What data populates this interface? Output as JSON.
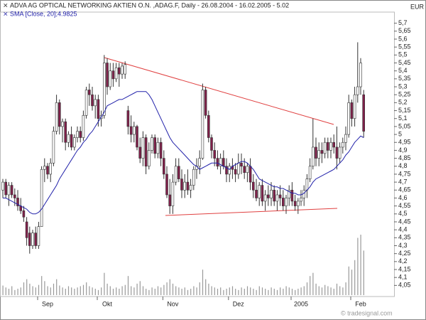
{
  "chart_data": {
    "type": "candlestick",
    "title": "ADVA AG OPTICAL NETWORKING AKTIEN O.N. ,ADAG.F, Daily - 26.08.2004 - 16.02.2005 - 5.02",
    "subtitle": "SMA [Close, 20];4.9825",
    "currency": "EUR",
    "source": "© tradesignal.com",
    "up_color": "#ffffff",
    "down_color": "#80204a",
    "sma_color": "#2222aa",
    "volume_color": "#999999",
    "ylim": [
      3.98,
      5.77
    ],
    "yticks": [
      {
        "value": 4.05,
        "label": "4,05"
      },
      {
        "value": 4.1,
        "label": "4,1"
      },
      {
        "value": 4.15,
        "label": "4,15"
      },
      {
        "value": 4.2,
        "label": "4,2"
      },
      {
        "value": 4.25,
        "label": "4,25"
      },
      {
        "value": 4.3,
        "label": "4,3"
      },
      {
        "value": 4.35,
        "label": "4,35"
      },
      {
        "value": 4.4,
        "label": "4,4"
      },
      {
        "value": 4.45,
        "label": "4,45"
      },
      {
        "value": 4.5,
        "label": "4,5"
      },
      {
        "value": 4.55,
        "label": "4,55"
      },
      {
        "value": 4.6,
        "label": "4,6"
      },
      {
        "value": 4.65,
        "label": "4,65"
      },
      {
        "value": 4.7,
        "label": "4,7"
      },
      {
        "value": 4.75,
        "label": "4,75"
      },
      {
        "value": 4.8,
        "label": "4,8"
      },
      {
        "value": 4.85,
        "label": "4,85"
      },
      {
        "value": 4.9,
        "label": "4,9"
      },
      {
        "value": 4.95,
        "label": "4,95"
      },
      5,
      {
        "value": 5.05,
        "label": "5,05"
      },
      {
        "value": 5.1,
        "label": "5,1"
      },
      {
        "value": 5.15,
        "label": "5,15"
      },
      {
        "value": 5.2,
        "label": "5,2"
      },
      {
        "value": 5.25,
        "label": "5,25"
      },
      {
        "value": 5.3,
        "label": "5,3"
      },
      {
        "value": 5.35,
        "label": "5,35"
      },
      {
        "value": 5.4,
        "label": "5,4"
      },
      {
        "value": 5.45,
        "label": "5,45"
      },
      {
        "value": 5.5,
        "label": "5,5"
      },
      {
        "value": 5.55,
        "label": "5,55"
      },
      {
        "value": 5.6,
        "label": "5,6"
      },
      {
        "value": 5.65,
        "label": "5,65"
      },
      {
        "value": 5.7,
        "label": "5,7"
      }
    ],
    "xticks": [
      {
        "value": 15,
        "label": "Sep"
      },
      {
        "value": 35,
        "label": "Okt"
      },
      {
        "value": 57,
        "label": "Nov"
      },
      {
        "value": 79,
        "label": "Dez"
      },
      {
        "value": 100,
        "label": "2005"
      },
      {
        "value": 120,
        "label": "Feb"
      }
    ],
    "open": [
      4.65,
      4.7,
      4.62,
      4.68,
      4.62,
      4.6,
      4.55,
      4.52,
      4.45,
      4.38,
      4.3,
      4.38,
      4.3,
      4.42,
      4.78,
      4.8,
      4.75,
      4.82,
      5.02,
      5.2,
      5.05,
      5.08,
      4.95,
      5.0,
      4.92,
      4.98,
      5.02,
      4.98,
      5.12,
      5.28,
      5.25,
      5.18,
      5.22,
      5.1,
      5.12,
      5.45,
      5.3,
      5.4,
      5.35,
      5.42,
      5.38,
      5.38,
      5.15,
      5.05,
      5.0,
      5.05,
      4.92,
      4.85,
      4.98,
      4.8,
      4.9,
      4.98,
      4.88,
      4.95,
      4.85,
      4.75,
      4.62,
      4.55,
      4.7,
      4.8,
      4.72,
      4.65,
      4.7,
      4.65,
      4.68,
      4.78,
      4.8,
      4.85,
      5.28,
      5.12,
      4.98,
      4.9,
      4.85,
      4.8,
      4.85,
      4.8,
      4.75,
      4.8,
      4.78,
      4.75,
      4.82,
      4.8,
      4.76,
      4.8,
      4.7,
      4.65,
      4.6,
      4.68,
      4.58,
      4.62,
      4.6,
      4.65,
      4.58,
      4.62,
      4.6,
      4.55,
      4.6,
      4.65,
      4.58,
      4.55,
      4.58,
      4.6,
      4.65,
      4.72,
      4.8,
      4.92,
      4.85,
      4.9,
      4.88,
      4.95,
      4.9,
      4.95,
      4.92,
      4.85,
      4.92,
      4.95,
      5.0,
      5.2,
      5.1,
      5.25,
      5.3,
      5.25
    ],
    "high": [
      4.72,
      4.72,
      4.7,
      4.7,
      4.66,
      4.65,
      4.6,
      4.55,
      4.48,
      4.42,
      4.4,
      4.42,
      4.45,
      4.8,
      4.85,
      4.82,
      4.85,
      5.05,
      5.25,
      5.22,
      5.1,
      5.1,
      5.02,
      5.05,
      5.0,
      5.05,
      5.05,
      5.15,
      5.3,
      5.32,
      5.3,
      5.25,
      5.25,
      5.15,
      5.5,
      5.48,
      5.45,
      5.45,
      5.45,
      5.45,
      5.45,
      5.46,
      5.18,
      5.12,
      5.08,
      5.06,
      4.98,
      5.02,
      5.0,
      4.95,
      5.0,
      5.0,
      4.98,
      4.98,
      4.9,
      4.8,
      4.72,
      4.75,
      4.85,
      4.85,
      4.78,
      4.75,
      4.78,
      4.72,
      4.8,
      4.85,
      4.9,
      5.32,
      5.3,
      5.15,
      5.0,
      4.95,
      4.9,
      4.88,
      4.9,
      4.85,
      4.82,
      4.85,
      4.82,
      4.88,
      4.88,
      4.85,
      4.82,
      4.85,
      4.75,
      4.72,
      4.7,
      4.72,
      4.65,
      4.68,
      4.7,
      4.68,
      4.65,
      4.68,
      4.65,
      4.62,
      4.68,
      4.7,
      4.62,
      4.6,
      4.65,
      4.68,
      4.75,
      4.85,
      5.1,
      4.98,
      4.95,
      4.95,
      4.98,
      4.98,
      4.98,
      5.0,
      5.05,
      4.95,
      4.98,
      5.05,
      5.25,
      5.22,
      5.3,
      5.58,
      5.48,
      5.28
    ],
    "low": [
      4.6,
      4.6,
      4.55,
      4.6,
      4.55,
      4.52,
      4.5,
      4.45,
      4.3,
      4.25,
      4.28,
      4.28,
      4.28,
      4.42,
      4.7,
      4.72,
      4.7,
      4.8,
      5.0,
      5.0,
      4.95,
      4.9,
      4.92,
      4.9,
      4.9,
      4.95,
      4.95,
      4.96,
      5.1,
      5.18,
      5.15,
      5.1,
      5.05,
      5.05,
      5.1,
      5.25,
      5.28,
      5.3,
      5.33,
      5.3,
      5.35,
      5.35,
      5.0,
      4.95,
      4.95,
      4.9,
      4.82,
      4.8,
      4.75,
      4.78,
      4.88,
      4.85,
      4.85,
      4.8,
      4.72,
      4.6,
      4.5,
      4.5,
      4.68,
      4.7,
      4.6,
      4.6,
      4.62,
      4.6,
      4.65,
      4.72,
      4.75,
      4.84,
      5.1,
      4.95,
      4.85,
      4.8,
      4.78,
      4.75,
      4.78,
      4.7,
      4.7,
      4.72,
      4.7,
      4.72,
      4.75,
      4.72,
      4.7,
      4.65,
      4.6,
      4.58,
      4.55,
      4.55,
      4.52,
      4.55,
      4.55,
      4.55,
      4.52,
      4.55,
      4.52,
      4.5,
      4.55,
      4.55,
      4.52,
      4.5,
      4.55,
      4.55,
      4.6,
      4.7,
      4.78,
      4.8,
      4.8,
      4.82,
      4.85,
      4.85,
      4.85,
      4.88,
      4.78,
      4.82,
      4.88,
      4.9,
      4.98,
      5.05,
      5.05,
      5.2,
      5.25,
      4.98
    ],
    "close": [
      4.7,
      4.62,
      4.68,
      4.62,
      4.6,
      4.55,
      4.52,
      4.48,
      4.35,
      4.3,
      4.38,
      4.3,
      4.42,
      4.78,
      4.8,
      4.75,
      4.82,
      5.02,
      5.2,
      5.05,
      5.08,
      4.95,
      5.0,
      4.92,
      4.98,
      5.02,
      4.98,
      5.12,
      5.28,
      5.25,
      5.18,
      5.22,
      5.1,
      5.12,
      5.45,
      5.3,
      5.4,
      5.35,
      5.42,
      5.38,
      5.43,
      5.44,
      5.05,
      5.0,
      5.05,
      4.92,
      4.85,
      4.98,
      4.8,
      4.9,
      4.98,
      4.88,
      4.95,
      4.85,
      4.75,
      4.62,
      4.55,
      4.7,
      4.8,
      4.72,
      4.65,
      4.7,
      4.65,
      4.68,
      4.78,
      4.8,
      4.85,
      5.28,
      5.12,
      4.98,
      4.9,
      4.85,
      4.8,
      4.85,
      4.8,
      4.75,
      4.8,
      4.78,
      4.75,
      4.82,
      4.8,
      4.76,
      4.8,
      4.7,
      4.65,
      4.6,
      4.68,
      4.58,
      4.62,
      4.6,
      4.65,
      4.58,
      4.62,
      4.6,
      4.55,
      4.6,
      4.65,
      4.58,
      4.55,
      4.58,
      4.6,
      4.65,
      4.72,
      4.8,
      4.92,
      4.85,
      4.9,
      4.88,
      4.95,
      4.9,
      4.95,
      4.92,
      4.85,
      4.92,
      4.95,
      5.0,
      5.2,
      5.1,
      5.25,
      5.3,
      5.45,
      5.02
    ],
    "sma": [
      4.6,
      4.6,
      4.59,
      4.58,
      4.57,
      4.56,
      4.55,
      4.54,
      4.53,
      4.51,
      4.5,
      4.5,
      4.51,
      4.53,
      4.56,
      4.59,
      4.62,
      4.65,
      4.68,
      4.72,
      4.75,
      4.78,
      4.81,
      4.84,
      4.87,
      4.9,
      4.92,
      4.95,
      4.97,
      5.0,
      5.02,
      5.05,
      5.08,
      5.11,
      5.14,
      5.18,
      5.19,
      5.2,
      5.21,
      5.22,
      5.22,
      5.23,
      5.24,
      5.25,
      5.26,
      5.27,
      5.27,
      5.27,
      5.27,
      5.25,
      5.22,
      5.18,
      5.14,
      5.1,
      5.06,
      5.02,
      4.98,
      4.95,
      4.93,
      4.91,
      4.89,
      4.87,
      4.85,
      4.83,
      4.81,
      4.8,
      4.78,
      4.79,
      4.8,
      4.81,
      4.82,
      4.82,
      4.82,
      4.81,
      4.8,
      4.79,
      4.78,
      4.8,
      4.81,
      4.82,
      4.83,
      4.83,
      4.82,
      4.8,
      4.78,
      4.75,
      4.72,
      4.71,
      4.7,
      4.69,
      4.68,
      4.67,
      4.67,
      4.66,
      4.66,
      4.65,
      4.64,
      4.63,
      4.63,
      4.62,
      4.62,
      4.63,
      4.65,
      4.67,
      4.7,
      4.72,
      4.73,
      4.74,
      4.75,
      4.76,
      4.77,
      4.78,
      4.8,
      4.82,
      4.84,
      4.87,
      4.89,
      4.92,
      4.95,
      4.97,
      4.99,
      4.98
    ],
    "volume": [
      15,
      12,
      10,
      14,
      8,
      10,
      12,
      20,
      25,
      18,
      14,
      12,
      16,
      30,
      22,
      14,
      12,
      18,
      25,
      15,
      12,
      10,
      14,
      12,
      10,
      12,
      14,
      16,
      20,
      14,
      12,
      10,
      8,
      12,
      35,
      18,
      14,
      10,
      12,
      10,
      14,
      16,
      30,
      14,
      12,
      18,
      22,
      14,
      10,
      8,
      12,
      10,
      14,
      12,
      16,
      20,
      25,
      18,
      14,
      12,
      10,
      12,
      8,
      10,
      14,
      12,
      20,
      40,
      25,
      18,
      14,
      12,
      10,
      12,
      8,
      10,
      12,
      14,
      10,
      8,
      12,
      10,
      14,
      12,
      10,
      8,
      14,
      12,
      10,
      8,
      12,
      10,
      8,
      12,
      10,
      14,
      12,
      10,
      8,
      10,
      12,
      14,
      20,
      30,
      35,
      18,
      14,
      12,
      16,
      14,
      12,
      10,
      18,
      14,
      12,
      20,
      45,
      40,
      55,
      90,
      95,
      70
    ]
  }
}
